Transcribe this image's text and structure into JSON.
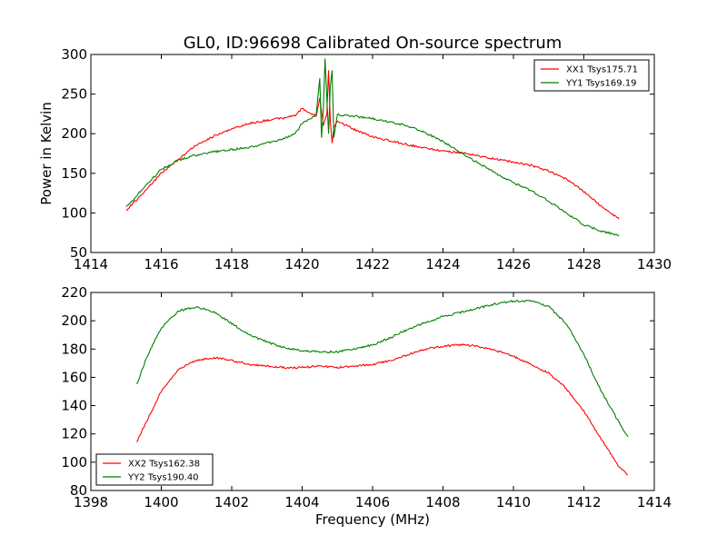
{
  "figure": {
    "title": "GL0, ID:96698 Calibrated On-source spectrum",
    "xlabel": "Frequency (MHz)",
    "ylabel_top": "Power in Kelvin"
  },
  "colors": {
    "xx": "#ff0000",
    "yy": "#007f00"
  },
  "chart_data": [
    {
      "type": "line",
      "title": "GL0, ID:96698 Calibrated On-source spectrum",
      "xlabel": "",
      "ylabel": "Power in Kelvin",
      "xlim": [
        1414,
        1430
      ],
      "ylim": [
        50,
        300
      ],
      "xticks": [
        1414,
        1416,
        1418,
        1420,
        1422,
        1424,
        1426,
        1428,
        1430
      ],
      "yticks": [
        50,
        100,
        150,
        200,
        250,
        300
      ],
      "grid": false,
      "legend": "top-right",
      "series": [
        {
          "name": "XX1 Tsys175.71",
          "color": "#ff0000",
          "x": [
            1415.0,
            1415.5,
            1416.0,
            1416.5,
            1417.0,
            1417.5,
            1418.0,
            1418.5,
            1419.0,
            1419.5,
            1419.8,
            1420.0,
            1420.2,
            1420.4,
            1420.5,
            1420.6,
            1420.7,
            1420.75,
            1420.8,
            1420.85,
            1420.9,
            1421.0,
            1421.5,
            1422.0,
            1422.5,
            1423.0,
            1423.5,
            1424.0,
            1424.5,
            1425.0,
            1425.5,
            1426.0,
            1426.5,
            1427.0,
            1427.5,
            1428.0,
            1428.5,
            1429.0
          ],
          "y": [
            103,
            126,
            150,
            168,
            186,
            197,
            206,
            213,
            217,
            220,
            223,
            232,
            226,
            222,
            245,
            210,
            225,
            280,
            215,
            188,
            208,
            216,
            205,
            196,
            191,
            186,
            182,
            178,
            176,
            172,
            168,
            164,
            160,
            153,
            143,
            127,
            108,
            92
          ]
        },
        {
          "name": "YY1 Tsys169.19",
          "color": "#007f00",
          "x": [
            1415.0,
            1415.5,
            1416.0,
            1416.5,
            1417.0,
            1417.5,
            1418.0,
            1418.5,
            1419.0,
            1419.5,
            1419.8,
            1420.0,
            1420.2,
            1420.4,
            1420.5,
            1420.55,
            1420.6,
            1420.65,
            1420.7,
            1420.75,
            1420.8,
            1420.85,
            1420.9,
            1421.0,
            1421.5,
            1422.0,
            1422.5,
            1423.0,
            1423.5,
            1424.0,
            1424.5,
            1425.0,
            1425.5,
            1426.0,
            1426.5,
            1427.0,
            1427.5,
            1428.0,
            1428.5,
            1429.0
          ],
          "y": [
            107,
            132,
            155,
            167,
            173,
            177,
            180,
            183,
            188,
            194,
            200,
            213,
            218,
            225,
            270,
            195,
            230,
            295,
            245,
            200,
            260,
            280,
            195,
            224,
            222,
            219,
            215,
            210,
            201,
            190,
            176,
            163,
            150,
            138,
            128,
            115,
            100,
            85,
            77,
            72
          ]
        }
      ]
    },
    {
      "type": "line",
      "title": "",
      "xlabel": "Frequency (MHz)",
      "ylabel": "",
      "xlim": [
        1398,
        1414
      ],
      "ylim": [
        80,
        220
      ],
      "xticks": [
        1398,
        1400,
        1402,
        1404,
        1406,
        1408,
        1410,
        1412,
        1414
      ],
      "yticks": [
        80,
        100,
        120,
        140,
        160,
        180,
        200,
        220
      ],
      "grid": false,
      "legend": "bottom-left",
      "series": [
        {
          "name": "XX2 Tsys162.38",
          "color": "#ff0000",
          "x": [
            1399.3,
            1399.6,
            1400.0,
            1400.5,
            1401.0,
            1401.5,
            1402.0,
            1402.5,
            1403.0,
            1403.5,
            1404.0,
            1404.5,
            1405.0,
            1405.5,
            1406.0,
            1406.5,
            1407.0,
            1407.5,
            1408.0,
            1408.5,
            1409.0,
            1409.5,
            1410.0,
            1410.5,
            1411.0,
            1411.5,
            1412.0,
            1412.5,
            1413.0,
            1413.25
          ],
          "y": [
            114,
            130,
            150,
            166,
            172,
            174,
            172,
            169,
            168,
            167,
            167,
            168,
            167,
            168,
            169,
            172,
            176,
            180,
            182,
            183,
            182,
            179,
            175,
            169,
            163,
            152,
            136,
            116,
            97,
            91
          ]
        },
        {
          "name": "YY2 Tsys190.40",
          "color": "#007f00",
          "x": [
            1399.3,
            1399.6,
            1400.0,
            1400.5,
            1401.0,
            1401.5,
            1402.0,
            1402.5,
            1403.0,
            1403.5,
            1404.0,
            1404.5,
            1405.0,
            1405.5,
            1406.0,
            1406.5,
            1407.0,
            1407.5,
            1408.0,
            1408.5,
            1409.0,
            1409.5,
            1410.0,
            1410.5,
            1411.0,
            1411.5,
            1412.0,
            1412.5,
            1413.0,
            1413.25
          ],
          "y": [
            155,
            175,
            195,
            207,
            210,
            206,
            198,
            190,
            185,
            181,
            179,
            178,
            178,
            180,
            183,
            188,
            194,
            199,
            203,
            206,
            209,
            212,
            214,
            214,
            210,
            198,
            176,
            150,
            128,
            118
          ]
        }
      ]
    }
  ]
}
